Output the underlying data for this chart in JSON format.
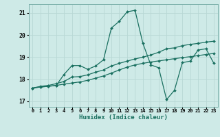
{
  "xlabel": "Humidex (Indice chaleur)",
  "bg_color": "#ceeae7",
  "grid_color": "#b8d8d5",
  "line_color": "#1a7060",
  "xlim": [
    -0.5,
    23.5
  ],
  "ylim": [
    16.75,
    21.4
  ],
  "yticks": [
    17,
    18,
    19,
    20,
    21
  ],
  "xticks": [
    0,
    1,
    2,
    3,
    4,
    5,
    6,
    7,
    8,
    9,
    10,
    11,
    12,
    13,
    14,
    15,
    16,
    17,
    18,
    19,
    20,
    21,
    22,
    23
  ],
  "line1_y": [
    17.6,
    17.65,
    17.68,
    17.72,
    17.78,
    17.83,
    17.88,
    17.95,
    18.05,
    18.15,
    18.28,
    18.42,
    18.55,
    18.65,
    18.72,
    18.78,
    18.83,
    18.88,
    18.93,
    18.98,
    19.02,
    19.07,
    19.12,
    19.17
  ],
  "line2_y": [
    17.6,
    17.68,
    17.72,
    17.8,
    17.9,
    18.1,
    18.12,
    18.2,
    18.32,
    18.42,
    18.6,
    18.72,
    18.82,
    18.92,
    19.0,
    19.1,
    19.22,
    19.38,
    19.42,
    19.52,
    19.58,
    19.62,
    19.68,
    19.72
  ],
  "line3_y": [
    17.6,
    17.65,
    17.68,
    17.72,
    18.22,
    18.62,
    18.62,
    18.45,
    18.6,
    18.88,
    20.32,
    20.62,
    21.05,
    21.12,
    19.62,
    18.65,
    18.52,
    17.08,
    17.5,
    18.75,
    18.82,
    19.32,
    19.38,
    18.72
  ]
}
